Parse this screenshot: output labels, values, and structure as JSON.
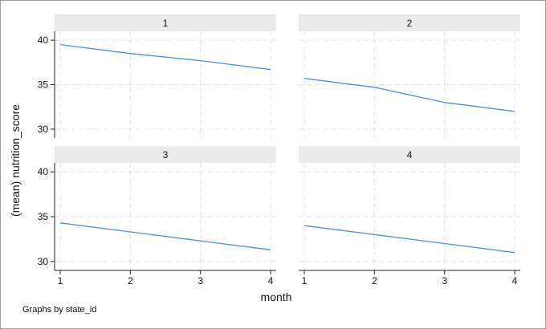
{
  "chart_data": {
    "type": "line",
    "facet_by": "state_id",
    "xlabel": "month",
    "ylabel": "(mean) nutrition_score",
    "note": "Graphs by state_id",
    "x": [
      1,
      2,
      3,
      4
    ],
    "xticks": [
      1,
      2,
      3,
      4
    ],
    "rows": [
      {
        "ylim": [
          29,
          41
        ],
        "yticks": [
          30,
          35,
          40
        ]
      },
      {
        "ylim": [
          29,
          41
        ],
        "yticks": [
          30,
          35,
          40
        ]
      }
    ],
    "panels": [
      {
        "label": "1",
        "values": [
          39.5,
          38.5,
          37.7,
          36.7
        ]
      },
      {
        "label": "2",
        "values": [
          35.7,
          34.7,
          33.0,
          32.0
        ]
      },
      {
        "label": "3",
        "values": [
          34.3,
          33.3,
          32.3,
          31.3
        ]
      },
      {
        "label": "4",
        "values": [
          34.0,
          33.0,
          32.0,
          31.0
        ]
      }
    ],
    "line_color": "#4a90d9",
    "grid": true,
    "legend": "none"
  }
}
